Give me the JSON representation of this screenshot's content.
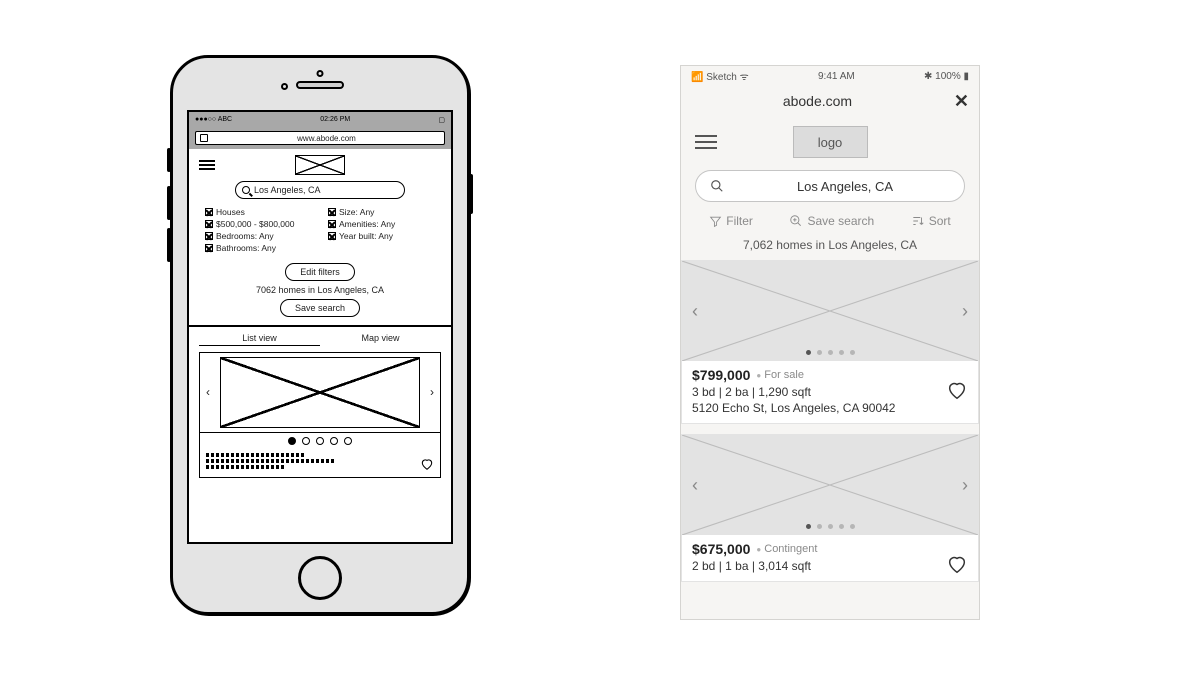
{
  "sketch": {
    "status": {
      "carrier": "●●●○○ ABC",
      "time": "02:26 PM"
    },
    "url": "www.abode.com",
    "search_value": "Los Angeles, CA",
    "filters_col1": [
      "Houses",
      "$500,000 - $800,000",
      "Bedrooms: Any",
      "Bathrooms: Any"
    ],
    "filters_col2": [
      "Size: Any",
      "Amenities: Any",
      "Year built: Any"
    ],
    "edit_filters_label": "Edit filters",
    "results_count": "7062 homes in Los Angeles, CA",
    "save_search_label": "Save search",
    "tab_list": "List view",
    "tab_map": "Map view",
    "carousel_dot_count": 5,
    "carousel_active_dot": 0
  },
  "hifi": {
    "status": {
      "carrier": "📶 Sketch ᯤ",
      "time": "9:41 AM",
      "battery": "✱ 100% ▮"
    },
    "url_text": "abode.com",
    "logo_label": "logo",
    "search_value": "Los Angeles, CA",
    "action_filter": "Filter",
    "action_save": "Save search",
    "action_sort": "Sort",
    "results_count": "7,062 homes in Los Angeles, CA",
    "listings": [
      {
        "price": "$799,000",
        "status": "For sale",
        "specs": "3 bd | 2 ba | 1,290 sqft",
        "addr": "5120 Echo St, Los Angeles, CA 90042"
      },
      {
        "price": "$675,000",
        "status": "Contingent",
        "specs": "2 bd | 1 ba | 3,014 sqft",
        "addr": ""
      }
    ],
    "carousel_dot_count": 5,
    "carousel_active_dot": 0,
    "colors": {
      "page_bg": "#f6f5f3",
      "placeholder_bg": "#e3e3e3",
      "muted": "#8a8a8a",
      "border": "#e3e3e3"
    }
  }
}
